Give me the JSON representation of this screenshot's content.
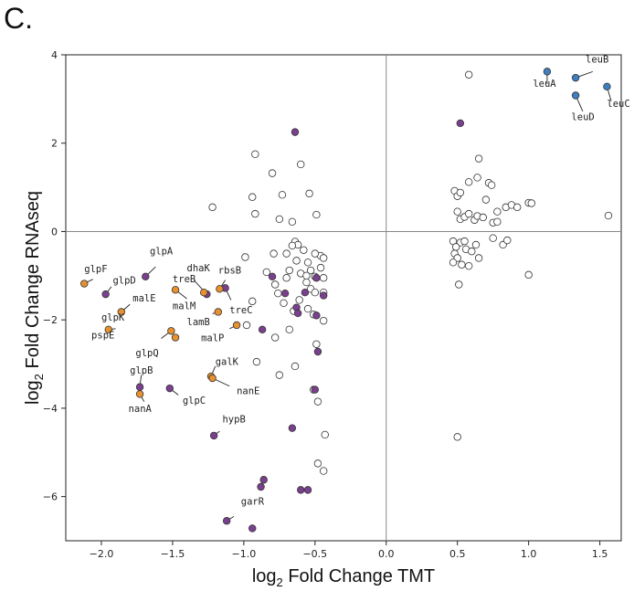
{
  "panel_label": "C.",
  "chart_data": {
    "type": "scatter",
    "title": "",
    "xlabel_prefix": "log",
    "xlabel_sub": "2",
    "xlabel_suffix": " Fold Change TMT",
    "ylabel_prefix": "log",
    "ylabel_sub": "2",
    "ylabel_suffix": " Fold Change RNAseq",
    "xlim": [
      -2.25,
      1.65
    ],
    "ylim": [
      -7.0,
      4.0
    ],
    "xticks": [
      -2.0,
      -1.5,
      -1.0,
      -0.5,
      0.0,
      0.5,
      1.0,
      1.5
    ],
    "xtick_labels": [
      "−2.0",
      "−1.5",
      "−1.0",
      "−0.5",
      "0.0",
      "0.5",
      "1.0",
      "1.5"
    ],
    "yticks": [
      -6,
      -4,
      -2,
      0,
      2,
      4
    ],
    "ytick_labels": [
      "−6",
      "−4",
      "−2",
      "0",
      "2",
      "4"
    ],
    "reference_lines": {
      "x": 0,
      "y": 0
    },
    "grid": false,
    "colors": {
      "other": "#ffffff",
      "purple": "#7b3f8f",
      "orange": "#e8912f",
      "blue": "#3f7fbf"
    },
    "series": [
      {
        "color_key": "other",
        "points": [
          [
            -1.22,
            0.55
          ],
          [
            -0.92,
            1.75
          ],
          [
            -0.94,
            0.78
          ],
          [
            -0.92,
            0.4
          ],
          [
            -0.8,
            1.32
          ],
          [
            -0.75,
            0.28
          ],
          [
            -0.73,
            0.83
          ],
          [
            -0.66,
            0.22
          ],
          [
            -0.6,
            1.52
          ],
          [
            -0.54,
            0.86
          ],
          [
            -0.49,
            0.38
          ],
          [
            -0.99,
            -0.58
          ],
          [
            -0.64,
            -0.23
          ],
          [
            -0.62,
            -0.3
          ],
          [
            -0.66,
            -0.32
          ],
          [
            -0.58,
            -0.42
          ],
          [
            -0.7,
            -0.5
          ],
          [
            -0.63,
            -0.66
          ],
          [
            -0.55,
            -0.7
          ],
          [
            -0.46,
            -0.55
          ],
          [
            -0.5,
            -0.5
          ],
          [
            -0.44,
            -0.6
          ],
          [
            -0.53,
            -0.88
          ],
          [
            -0.46,
            -0.82
          ],
          [
            -0.68,
            -0.88
          ],
          [
            -0.7,
            -1.05
          ],
          [
            -0.6,
            -0.95
          ],
          [
            -0.56,
            -1.0
          ],
          [
            -0.5,
            -1.02
          ],
          [
            -0.44,
            -1.05
          ],
          [
            -0.79,
            -0.5
          ],
          [
            -0.84,
            -0.92
          ],
          [
            -0.78,
            -1.2
          ],
          [
            -0.76,
            -1.4
          ],
          [
            -0.72,
            -1.62
          ],
          [
            -0.56,
            -1.15
          ],
          [
            -0.53,
            -1.3
          ],
          [
            -0.5,
            -1.38
          ],
          [
            -0.44,
            -1.38
          ],
          [
            -0.61,
            -1.55
          ],
          [
            -0.65,
            -1.8
          ],
          [
            -0.55,
            -1.75
          ],
          [
            -0.51,
            -1.88
          ],
          [
            -0.44,
            -2.02
          ],
          [
            -0.68,
            -2.22
          ],
          [
            -0.78,
            -2.4
          ],
          [
            -0.94,
            -1.58
          ],
          [
            -0.98,
            -2.12
          ],
          [
            -0.49,
            -2.55
          ],
          [
            -0.91,
            -2.95
          ],
          [
            -0.64,
            -3.05
          ],
          [
            -0.75,
            -3.25
          ],
          [
            -0.51,
            -3.58
          ],
          [
            -0.48,
            -3.85
          ],
          [
            -0.43,
            -4.6
          ],
          [
            -0.48,
            -5.25
          ],
          [
            -0.44,
            -5.42
          ],
          [
            0.58,
            3.55
          ],
          [
            0.48,
            0.92
          ],
          [
            0.5,
            0.8
          ],
          [
            0.52,
            0.88
          ],
          [
            0.58,
            1.12
          ],
          [
            0.64,
            1.22
          ],
          [
            0.65,
            1.65
          ],
          [
            0.72,
            1.1
          ],
          [
            0.74,
            1.05
          ],
          [
            0.7,
            0.72
          ],
          [
            0.78,
            0.45
          ],
          [
            0.84,
            0.55
          ],
          [
            0.88,
            0.6
          ],
          [
            0.92,
            0.55
          ],
          [
            1.0,
            0.65
          ],
          [
            1.02,
            0.64
          ],
          [
            1.56,
            0.36
          ],
          [
            0.5,
            0.45
          ],
          [
            0.52,
            0.28
          ],
          [
            0.55,
            0.33
          ],
          [
            0.58,
            0.4
          ],
          [
            0.62,
            0.26
          ],
          [
            0.64,
            0.35
          ],
          [
            0.68,
            0.32
          ],
          [
            0.75,
            0.2
          ],
          [
            0.78,
            0.22
          ],
          [
            0.47,
            -0.22
          ],
          [
            0.52,
            -0.25
          ],
          [
            0.55,
            -0.22
          ],
          [
            0.49,
            -0.35
          ],
          [
            0.56,
            -0.4
          ],
          [
            0.6,
            -0.45
          ],
          [
            0.63,
            -0.3
          ],
          [
            0.48,
            -0.5
          ],
          [
            0.5,
            -0.6
          ],
          [
            0.53,
            -0.75
          ],
          [
            0.58,
            -0.78
          ],
          [
            0.47,
            -0.7
          ],
          [
            0.65,
            -0.6
          ],
          [
            0.75,
            -0.15
          ],
          [
            0.82,
            -0.3
          ],
          [
            0.85,
            -0.2
          ],
          [
            1.0,
            -0.98
          ],
          [
            0.51,
            -1.2
          ],
          [
            0.5,
            -4.65
          ]
        ]
      },
      {
        "color_key": "purple",
        "points": [
          [
            -1.97,
            -1.42
          ],
          [
            -1.69,
            -1.02
          ],
          [
            -1.73,
            -3.52
          ],
          [
            -1.52,
            -3.55
          ],
          [
            -1.26,
            -1.42
          ],
          [
            -1.13,
            -1.28
          ],
          [
            -0.87,
            -2.22
          ],
          [
            -0.8,
            -1.02
          ],
          [
            -0.71,
            -1.4
          ],
          [
            -0.63,
            -1.72
          ],
          [
            -0.62,
            -1.85
          ],
          [
            -0.57,
            -1.38
          ],
          [
            -0.49,
            -1.05
          ],
          [
            -0.44,
            -1.45
          ],
          [
            -0.49,
            -1.9
          ],
          [
            -0.48,
            -2.72
          ],
          [
            -0.5,
            -3.58
          ],
          [
            -0.64,
            2.25
          ],
          [
            0.52,
            2.45
          ],
          [
            -1.21,
            -4.62
          ],
          [
            -0.66,
            -4.45
          ],
          [
            -0.86,
            -5.62
          ],
          [
            -0.88,
            -5.78
          ],
          [
            -0.6,
            -5.85
          ],
          [
            -0.55,
            -5.85
          ],
          [
            -1.12,
            -6.55
          ],
          [
            -0.94,
            -6.72
          ]
        ]
      },
      {
        "color_key": "orange",
        "points": [
          [
            -2.12,
            -1.18
          ],
          [
            -1.86,
            -1.82
          ],
          [
            -1.95,
            -2.22
          ],
          [
            -1.73,
            -3.68
          ],
          [
            -1.51,
            -2.25
          ],
          [
            -1.48,
            -1.32
          ],
          [
            -1.48,
            -2.4
          ],
          [
            -1.28,
            -1.38
          ],
          [
            -1.17,
            -1.3
          ],
          [
            -1.18,
            -1.82
          ],
          [
            -1.05,
            -2.12
          ],
          [
            -1.23,
            -3.28
          ],
          [
            -1.22,
            -3.32
          ]
        ]
      },
      {
        "color_key": "blue",
        "points": [
          [
            1.13,
            3.62
          ],
          [
            1.33,
            3.48
          ],
          [
            1.55,
            3.28
          ],
          [
            1.33,
            3.08
          ]
        ]
      }
    ],
    "annotations": [
      {
        "text": "leuB",
        "x": 1.33,
        "y": 3.48,
        "lx": 1.45,
        "ly": 3.62,
        "tx": 1.4,
        "ty": 3.82,
        "anchor": "start"
      },
      {
        "text": "leuA",
        "x": 1.13,
        "y": 3.62,
        "lx": 1.13,
        "ly": 3.34,
        "tx": 1.03,
        "ty": 3.28,
        "anchor": "start"
      },
      {
        "text": "leuC",
        "x": 1.55,
        "y": 3.28,
        "lx": 1.58,
        "ly": 2.95,
        "tx": 1.55,
        "ty": 2.82,
        "anchor": "start"
      },
      {
        "text": "leuD",
        "x": 1.33,
        "y": 3.08,
        "lx": 1.38,
        "ly": 2.72,
        "tx": 1.3,
        "ty": 2.52,
        "anchor": "start"
      },
      {
        "text": "glpA",
        "x": -1.69,
        "y": -1.02,
        "lx": -1.62,
        "ly": -0.8,
        "tx": -1.66,
        "ty": -0.52,
        "anchor": "start"
      },
      {
        "text": "glpF",
        "x": -2.12,
        "y": -1.18,
        "lx": -2.06,
        "ly": -1.08,
        "tx": -2.12,
        "ty": -0.92,
        "anchor": "start"
      },
      {
        "text": "glpD",
        "x": -1.97,
        "y": -1.42,
        "lx": -1.93,
        "ly": -1.25,
        "tx": -1.92,
        "ty": -1.18,
        "anchor": "start"
      },
      {
        "text": "dhaK",
        "x": -1.26,
        "y": -1.42,
        "lx": -1.35,
        "ly": -1.1,
        "tx": -1.4,
        "ty": -0.9,
        "anchor": "start"
      },
      {
        "text": "rbsB",
        "x": -1.17,
        "y": -1.3,
        "lx": -1.13,
        "ly": -1.1,
        "tx": -1.18,
        "ty": -0.95,
        "anchor": "start"
      },
      {
        "text": "treB",
        "x": -1.28,
        "y": -1.38,
        "lx": -1.27,
        "ly": -1.35,
        "tx": -1.5,
        "ty": -1.15,
        "anchor": "start"
      },
      {
        "text": "malE",
        "x": -1.86,
        "y": -1.82,
        "lx": -1.8,
        "ly": -1.65,
        "tx": -1.78,
        "ty": -1.58,
        "anchor": "start"
      },
      {
        "text": "malM",
        "x": -1.48,
        "y": -1.32,
        "lx": -1.4,
        "ly": -1.52,
        "tx": -1.5,
        "ty": -1.76,
        "anchor": "start"
      },
      {
        "text": "treC",
        "x": -1.13,
        "y": -1.28,
        "lx": -1.09,
        "ly": -1.55,
        "tx": -1.1,
        "ty": -1.85,
        "anchor": "start"
      },
      {
        "text": "glpK",
        "x": -1.86,
        "y": -1.82,
        "lx": -1.86,
        "ly": -1.82,
        "tx": -2.0,
        "ty": -2.02,
        "anchor": "start"
      },
      {
        "text": "lamB",
        "x": -1.18,
        "y": -1.82,
        "lx": -1.22,
        "ly": -1.86,
        "tx": -1.4,
        "ty": -2.12,
        "anchor": "start"
      },
      {
        "text": "pspE",
        "x": -1.95,
        "y": -2.22,
        "lx": -1.9,
        "ly": -2.2,
        "tx": -2.07,
        "ty": -2.42,
        "anchor": "start"
      },
      {
        "text": "malP",
        "x": -1.05,
        "y": -2.12,
        "lx": -1.1,
        "ly": -2.2,
        "tx": -1.3,
        "ty": -2.48,
        "anchor": "start"
      },
      {
        "text": "glpQ",
        "x": -1.51,
        "y": -2.25,
        "lx": -1.58,
        "ly": -2.42,
        "tx": -1.76,
        "ty": -2.82,
        "anchor": "start"
      },
      {
        "text": "galK",
        "x": -1.23,
        "y": -3.28,
        "lx": -1.2,
        "ly": -3.05,
        "tx": -1.2,
        "ty": -3.02,
        "anchor": "start"
      },
      {
        "text": "glpB",
        "x": -1.73,
        "y": -3.52,
        "lx": -1.72,
        "ly": -3.25,
        "tx": -1.8,
        "ty": -3.22,
        "anchor": "start"
      },
      {
        "text": "nanE",
        "x": -1.22,
        "y": -3.32,
        "lx": -1.1,
        "ly": -3.5,
        "tx": -1.05,
        "ty": -3.68,
        "anchor": "start"
      },
      {
        "text": "glpC",
        "x": -1.52,
        "y": -3.55,
        "lx": -1.46,
        "ly": -3.7,
        "tx": -1.43,
        "ty": -3.9,
        "anchor": "start"
      },
      {
        "text": "nanA",
        "x": -1.73,
        "y": -3.68,
        "lx": -1.7,
        "ly": -3.85,
        "tx": -1.81,
        "ty": -4.08,
        "anchor": "start"
      },
      {
        "text": "hypB",
        "x": -1.21,
        "y": -4.62,
        "lx": -1.17,
        "ly": -4.52,
        "tx": -1.15,
        "ty": -4.32,
        "anchor": "start"
      },
      {
        "text": "garR",
        "x": -1.12,
        "y": -6.55,
        "lx": -1.07,
        "ly": -6.45,
        "tx": -1.02,
        "ty": -6.18,
        "anchor": "start"
      }
    ]
  }
}
